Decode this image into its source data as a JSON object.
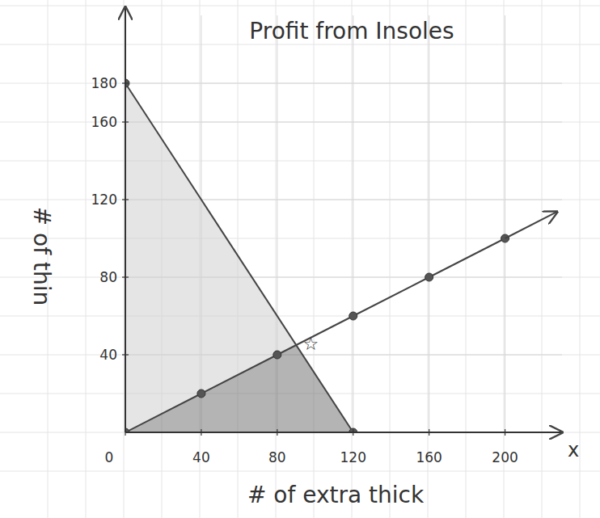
{
  "chart_data": {
    "type": "line",
    "title": "Profit from Insoles",
    "x_label": "# of extra thick",
    "y_label": "# of thin",
    "x_axis_name": "x",
    "xlim": [
      0,
      230
    ],
    "ylim": [
      0,
      215
    ],
    "xticks": [
      0,
      40,
      80,
      120,
      160,
      200
    ],
    "yticks": [
      40,
      80,
      120,
      160,
      180
    ],
    "grid": true,
    "series": [
      {
        "x": [
          0,
          120
        ],
        "values": [
          180,
          0
        ],
        "color": "#444444",
        "marker": "circle",
        "line_style": "solid"
      },
      {
        "x": [
          0,
          40,
          80,
          120,
          160,
          200
        ],
        "values": [
          0,
          20,
          40,
          60,
          80,
          100
        ],
        "color": "#444444",
        "marker": "circle",
        "line_style": "arrow"
      }
    ],
    "regions": [
      {
        "x": [
          0,
          0,
          90
        ],
        "values": [
          0,
          180,
          45
        ],
        "color": "#cfcfcf"
      },
      {
        "x": [
          0,
          90,
          120
        ],
        "values": [
          0,
          45,
          0
        ],
        "color": "#777777"
      }
    ],
    "annotations": [
      {
        "x": 90,
        "y": 45,
        "label": "☆"
      }
    ]
  }
}
